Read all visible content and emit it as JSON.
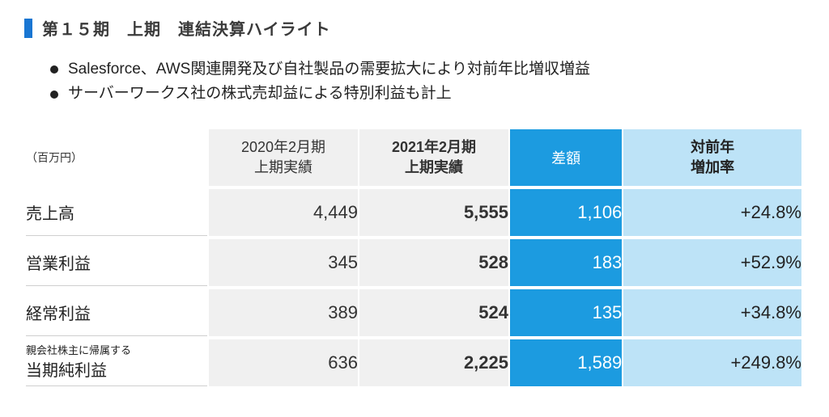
{
  "title": "第１５期　上期　連結決算ハイライト",
  "bullets": [
    "Salesforce、AWS関連開発及び自社製品の需要拡大により対前年比増収増益",
    "サーバーワークス社の株式売却益による特別利益も計上"
  ],
  "table": {
    "unit_label": "（百万円）",
    "columns": [
      {
        "label_line1": "2020年2月期",
        "label_line2": "上期実績",
        "style": "grey"
      },
      {
        "label_line1": "2021年2月期",
        "label_line2": "上期実績",
        "style": "grey_bold"
      },
      {
        "label_line1": "差額",
        "label_line2": "",
        "style": "blue"
      },
      {
        "label_line1": "対前年",
        "label_line2": "増加率",
        "style": "lightblue"
      }
    ],
    "rows": [
      {
        "label": "売上高",
        "label_small": "",
        "v1": "4,449",
        "v2": "5,555",
        "diff": "1,106",
        "rate": "+24.8%"
      },
      {
        "label": "営業利益",
        "label_small": "",
        "v1": "345",
        "v2": "528",
        "diff": "183",
        "rate": "+52.9%"
      },
      {
        "label": "経常利益",
        "label_small": "",
        "v1": "389",
        "v2": "524",
        "diff": "135",
        "rate": "+34.8%"
      },
      {
        "label": "当期純利益",
        "label_small": "親会社株主に帰属する",
        "v1": "636",
        "v2": "2,225",
        "diff": "1,589",
        "rate": "+249.8%"
      }
    ]
  },
  "colors": {
    "accent_blue": "#1976d2",
    "header_grey": "#f0f0f0",
    "col_blue": "#1c9be0",
    "col_lightblue": "#bde3f7",
    "text": "#333333",
    "background": "#ffffff"
  }
}
